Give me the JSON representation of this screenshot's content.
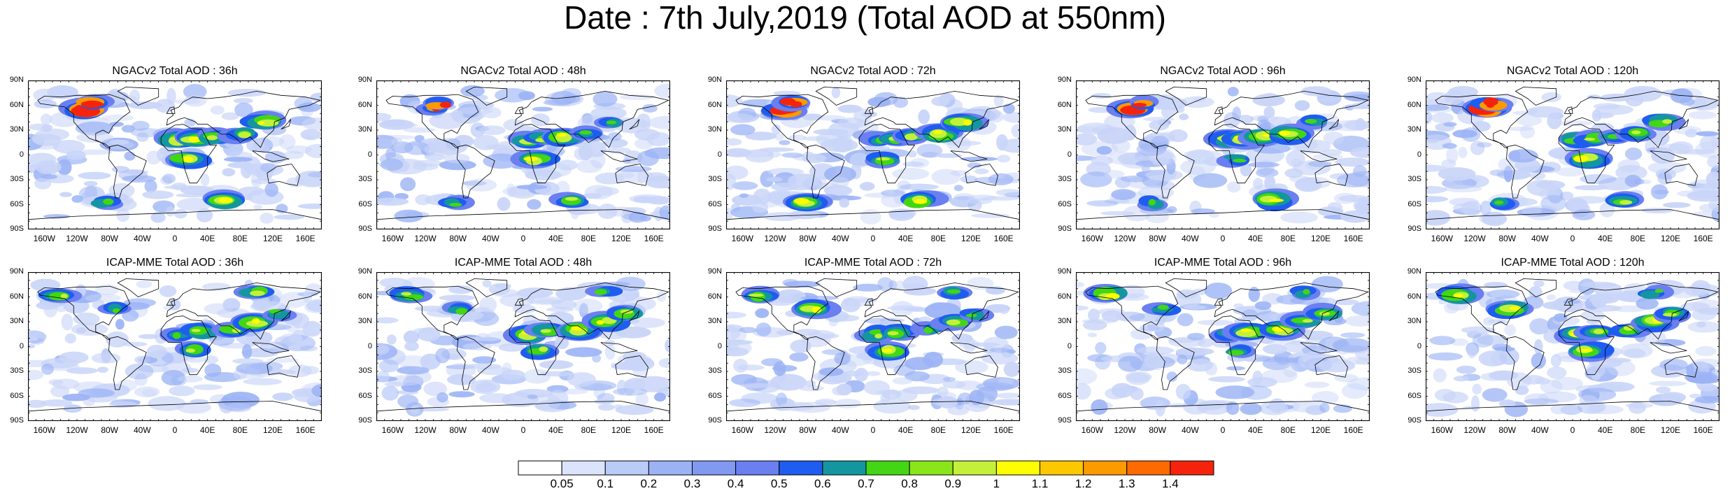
{
  "title": "Date : 7th July,2019 (Total AOD at 550nm)",
  "lat_labels": [
    "90N",
    "60N",
    "30N",
    "0",
    "30S",
    "60S",
    "90S"
  ],
  "lon_labels": [
    "160W",
    "120W",
    "80W",
    "40W",
    "0",
    "40E",
    "80E",
    "120E",
    "160E"
  ],
  "rows": [
    {
      "model": "NGACv2",
      "panels": [
        {
          "title": "NGACv2 Total AOD : 36h"
        },
        {
          "title": "NGACv2 Total AOD : 48h"
        },
        {
          "title": "NGACv2 Total AOD : 72h"
        },
        {
          "title": "NGACv2 Total AOD : 96h"
        },
        {
          "title": "NGACv2 Total AOD : 120h"
        }
      ]
    },
    {
      "model": "ICAP-MME",
      "panels": [
        {
          "title": "ICAP-MME Total AOD : 36h"
        },
        {
          "title": "ICAP-MME Total AOD : 48h"
        },
        {
          "title": "ICAP-MME Total AOD : 72h"
        },
        {
          "title": "ICAP-MME Total AOD : 96h"
        },
        {
          "title": "ICAP-MME Total AOD : 120h"
        }
      ]
    }
  ],
  "colorbar": {
    "labels": [
      "0.05",
      "0.1",
      "0.2",
      "0.3",
      "0.4",
      "0.5",
      "0.6",
      "0.7",
      "0.8",
      "0.9",
      "1",
      "1.1",
      "1.2",
      "1.3",
      "1.4"
    ],
    "colors": [
      "#ffffff",
      "#dbe4fb",
      "#b9ccf8",
      "#9bb3f5",
      "#8299f2",
      "#6a7ff0",
      "#1f5cf0",
      "#1496a0",
      "#43d614",
      "#8ae51a",
      "#c4f03a",
      "#fefe00",
      "#fdc800",
      "#fd9a00",
      "#fd6a00",
      "#f5230c"
    ]
  },
  "plume_color_levels": [
    "#c9d5f8",
    "#9bb3f5",
    "#6a7ff0",
    "#1f5cf0",
    "#1496a0",
    "#43d614",
    "#c4f03a",
    "#fefe00",
    "#fd9a00",
    "#f5230c"
  ]
}
